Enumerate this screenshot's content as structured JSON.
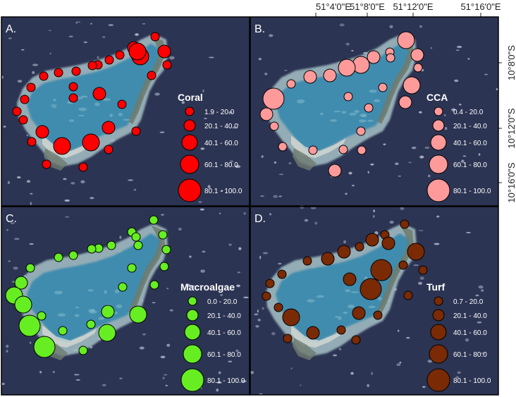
{
  "axes": {
    "lon_labels": [
      "51°4'0\"E",
      "51°8'0\"E",
      "51°12'0\"E",
      "51°16'0\"E"
    ],
    "lat_labels": [
      "10°8'0\"S",
      "10°12'0\"S",
      "10°16'0\"S"
    ]
  },
  "legend_classes": [
    {
      "level": 1,
      "range_by_panel": [
        "1.9 - 20.0",
        "0.4 - 20.0",
        "0.0 - 20.0",
        "0.7 - 20.0"
      ]
    },
    {
      "level": 2,
      "range": "20.1 - 40.0"
    },
    {
      "level": 3,
      "range": "40.1 - 60.0"
    },
    {
      "level": 4,
      "range": "60.1 - 80.0"
    },
    {
      "level": 5,
      "range": "80.1 - 100.0"
    }
  ],
  "panels": [
    {
      "letter": "A.",
      "title": "Coral",
      "color": "#ff0000",
      "legend": [
        "1.9 - 20.0",
        "20.1 - 40.0",
        "40.1 - 60.0",
        "60.1 - 80.0",
        "80.1 - 100.0"
      ],
      "sites": [
        [
          220,
          52,
          1
        ],
        [
          190,
          68,
          2
        ],
        [
          199,
          80,
          3
        ],
        [
          195,
          73,
          3
        ],
        [
          233,
          73,
          2
        ],
        [
          170,
          78,
          1
        ],
        [
          155,
          85,
          1
        ],
        [
          139,
          92,
          1
        ],
        [
          131,
          93,
          1
        ],
        [
          108,
          101,
          1
        ],
        [
          83,
          103,
          1
        ],
        [
          62,
          108,
          1
        ],
        [
          44,
          124,
          1
        ],
        [
          35,
          141,
          1
        ],
        [
          24,
          158,
          1
        ],
        [
          33,
          170,
          1
        ],
        [
          60,
          187,
          2
        ],
        [
          45,
          201,
          1
        ],
        [
          88,
          207,
          3
        ],
        [
          129,
          202,
          3
        ],
        [
          154,
          212,
          1
        ],
        [
          118,
          237,
          1
        ],
        [
          66,
          233,
          1
        ],
        [
          154,
          181,
          2
        ],
        [
          193,
          186,
          1
        ],
        [
          173,
          148,
          1
        ],
        [
          141,
          133,
          2
        ],
        [
          104,
          139,
          1
        ],
        [
          237,
          92,
          1
        ],
        [
          104,
          123,
          1
        ],
        [
          215,
          107,
          1
        ]
      ]
    },
    {
      "letter": "B.",
      "title": "CCA",
      "color": "#ff9a9a",
      "legend": [
        "0.4 - 20.0",
        "20.1 - 40.0",
        "40.1 - 60.0",
        "60.1 - 80.0",
        "80.1 - 100.0"
      ],
      "sites": [
        [
          576,
          57,
          3
        ],
        [
          553,
          74,
          1
        ],
        [
          530,
          81,
          2
        ],
        [
          512,
          92,
          3
        ],
        [
          492,
          96,
          3
        ],
        [
          468,
          107,
          2
        ],
        [
          440,
          109,
          2
        ],
        [
          413,
          119,
          1
        ],
        [
          388,
          140,
          4
        ],
        [
          378,
          162,
          2
        ],
        [
          389,
          179,
          1
        ],
        [
          401,
          208,
          1
        ],
        [
          444,
          213,
          1
        ],
        [
          475,
          242,
          2
        ],
        [
          487,
          212,
          1
        ],
        [
          513,
          213,
          1
        ],
        [
          512,
          186,
          1
        ],
        [
          523,
          153,
          1
        ],
        [
          543,
          124,
          1
        ],
        [
          494,
          137,
          1
        ],
        [
          575,
          145,
          2
        ],
        [
          584,
          121,
          3
        ],
        [
          593,
          96,
          1
        ],
        [
          592,
          78,
          2
        ],
        [
          554,
          82,
          1
        ]
      ]
    },
    {
      "letter": "C.",
      "title": "Macroalgae",
      "color": "#66ee22",
      "legend": [
        "0.0 - 20.0",
        "20.1 - 40.0",
        "40.1 - 60.0",
        "60.1 - 80.0",
        "80.1 - 100.0"
      ],
      "sites": [
        [
          218,
          312,
          1
        ],
        [
          187,
          329,
          1
        ],
        [
          193,
          336,
          1
        ],
        [
          196,
          348,
          1
        ],
        [
          158,
          348,
          1
        ],
        [
          140,
          352,
          1
        ],
        [
          130,
          353,
          1
        ],
        [
          104,
          362,
          1
        ],
        [
          83,
          365,
          1
        ],
        [
          43,
          380,
          1
        ],
        [
          30,
          401,
          2
        ],
        [
          20,
          419,
          3
        ],
        [
          33,
          432,
          3
        ],
        [
          59,
          448,
          1
        ],
        [
          42,
          462,
          4
        ],
        [
          89,
          469,
          1
        ],
        [
          63,
          492,
          4
        ],
        [
          118,
          497,
          1
        ],
        [
          152,
          472,
          3
        ],
        [
          129,
          460,
          1
        ],
        [
          153,
          442,
          2
        ],
        [
          196,
          446,
          3
        ],
        [
          174,
          407,
          1
        ],
        [
          219,
          404,
          1
        ],
        [
          187,
          380,
          1
        ],
        [
          231,
          333,
          1
        ],
        [
          236,
          354,
          1
        ],
        [
          233,
          378,
          1
        ]
      ]
    },
    {
      "letter": "D.",
      "title": "Turf",
      "color": "#7a2a05",
      "legend": [
        "0.7 - 20.0",
        "20.1 - 40.0",
        "40.1 - 60.0",
        "60.1 - 80.0",
        "80.1 - 100.0"
      ],
      "sites": [
        [
          574,
          318,
          1
        ],
        [
          546,
          333,
          1
        ],
        [
          551,
          345,
          2
        ],
        [
          528,
          340,
          2
        ],
        [
          510,
          350,
          1
        ],
        [
          488,
          357,
          2
        ],
        [
          465,
          367,
          2
        ],
        [
          436,
          370,
          1
        ],
        [
          400,
          389,
          1
        ],
        [
          383,
          402,
          1
        ],
        [
          378,
          420,
          1
        ],
        [
          395,
          436,
          1
        ],
        [
          413,
          450,
          3
        ],
        [
          408,
          480,
          1
        ],
        [
          444,
          472,
          2
        ],
        [
          484,
          468,
          1
        ],
        [
          505,
          482,
          1
        ],
        [
          536,
          447,
          1
        ],
        [
          509,
          444,
          2
        ],
        [
          526,
          410,
          4
        ],
        [
          541,
          383,
          4
        ],
        [
          496,
          396,
          2
        ],
        [
          572,
          376,
          1
        ],
        [
          590,
          357,
          3
        ],
        [
          600,
          383,
          1
        ],
        [
          579,
          419,
          1
        ]
      ]
    }
  ]
}
